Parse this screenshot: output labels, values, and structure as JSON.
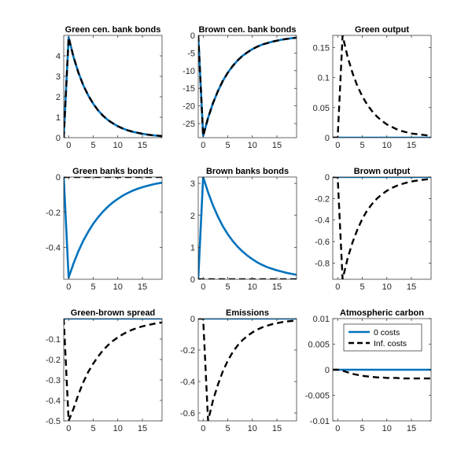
{
  "colors": {
    "zero": "#0072BD",
    "inf": "#000000"
  },
  "chart_data": [
    {
      "type": "line",
      "title": "Green cen. bank bonds",
      "xlim": [
        -1,
        19
      ],
      "ylim": [
        0,
        5
      ],
      "xticks": [
        0,
        5,
        10,
        15
      ],
      "yticks": [
        0,
        1,
        2,
        3,
        4
      ],
      "ytick_labels": [
        "0",
        "1",
        "2",
        "3",
        "4"
      ],
      "series": [
        {
          "name": "0 costs",
          "x": [
            -1,
            0,
            1,
            2,
            3,
            4,
            5,
            6,
            7,
            8,
            9,
            10,
            11,
            12,
            13,
            14,
            15,
            16,
            17,
            18,
            19
          ],
          "y": [
            0,
            4.9,
            3.94,
            3.17,
            2.55,
            2.06,
            1.66,
            1.33,
            1.07,
            0.86,
            0.7,
            0.56,
            0.45,
            0.36,
            0.29,
            0.24,
            0.19,
            0.15,
            0.12,
            0.1,
            0.08
          ]
        },
        {
          "name": "Inf. costs",
          "x": [
            -1,
            0,
            1,
            2,
            3,
            4,
            5,
            6,
            7,
            8,
            9,
            10,
            11,
            12,
            13,
            14,
            15,
            16,
            17,
            18,
            19
          ],
          "y": [
            0,
            4.9,
            3.94,
            3.17,
            2.55,
            2.06,
            1.66,
            1.33,
            1.07,
            0.86,
            0.7,
            0.56,
            0.45,
            0.36,
            0.29,
            0.24,
            0.19,
            0.15,
            0.12,
            0.1,
            0.08
          ]
        }
      ]
    },
    {
      "type": "line",
      "title": "Brown cen. bank bonds",
      "xlim": [
        -1,
        19
      ],
      "ylim": [
        -29,
        0
      ],
      "xticks": [
        0,
        5,
        10,
        15
      ],
      "yticks": [
        0,
        -5,
        -10,
        -15,
        -20,
        -25
      ],
      "ytick_labels": [
        "0",
        "-5",
        "-10",
        "-15",
        "-20",
        "-25"
      ],
      "series": [
        {
          "name": "0 costs",
          "x": [
            -1,
            0,
            1,
            2,
            3,
            4,
            5,
            6,
            7,
            8,
            9,
            10,
            11,
            12,
            13,
            14,
            15,
            16,
            17,
            18,
            19
          ],
          "y": [
            0,
            -28.5,
            -23.4,
            -19.2,
            -15.8,
            -12.9,
            -10.6,
            -8.7,
            -7.1,
            -5.8,
            -4.8,
            -3.9,
            -3.2,
            -2.6,
            -2.2,
            -1.8,
            -1.5,
            -1.2,
            -1.0,
            -0.8,
            -0.65
          ]
        },
        {
          "name": "Inf. costs",
          "x": [
            -1,
            0,
            1,
            2,
            3,
            4,
            5,
            6,
            7,
            8,
            9,
            10,
            11,
            12,
            13,
            14,
            15,
            16,
            17,
            18,
            19
          ],
          "y": [
            0,
            -28.5,
            -23.4,
            -19.2,
            -15.8,
            -12.9,
            -10.6,
            -8.7,
            -7.1,
            -5.8,
            -4.8,
            -3.9,
            -3.2,
            -2.6,
            -2.2,
            -1.8,
            -1.5,
            -1.2,
            -1.0,
            -0.8,
            -0.65
          ]
        }
      ]
    },
    {
      "type": "line",
      "title": "Green output",
      "xlim": [
        -1,
        19
      ],
      "ylim": [
        0,
        0.17
      ],
      "xticks": [
        0,
        5,
        10,
        15
      ],
      "yticks": [
        0,
        0.05,
        0.1,
        0.15
      ],
      "ytick_labels": [
        "0",
        "0.05",
        "0.1",
        "0.15"
      ],
      "series": [
        {
          "name": "0 costs",
          "x": [
            -1,
            19
          ],
          "y": [
            0,
            0
          ]
        },
        {
          "name": "Inf. costs",
          "x": [
            -1,
            0,
            1,
            2,
            3,
            4,
            5,
            6,
            7,
            8,
            9,
            10,
            11,
            12,
            13,
            14,
            15,
            16,
            17,
            18,
            19
          ],
          "y": [
            0,
            0,
            0.17,
            0.135,
            0.108,
            0.086,
            0.069,
            0.055,
            0.044,
            0.035,
            0.028,
            0.022,
            0.018,
            0.014,
            0.011,
            0.009,
            0.007,
            0.006,
            0.005,
            0.004,
            0.003
          ]
        }
      ]
    },
    {
      "type": "line",
      "title": "Green banks bonds",
      "xlim": [
        -1,
        19
      ],
      "ylim": [
        -0.58,
        0
      ],
      "xticks": [
        0,
        5,
        10,
        15
      ],
      "yticks": [
        0,
        -0.2,
        -0.4
      ],
      "ytick_labels": [
        "0",
        "-0.2",
        "-0.4"
      ],
      "series": [
        {
          "name": "0 costs",
          "x": [
            -1,
            0,
            1,
            2,
            3,
            4,
            5,
            6,
            7,
            8,
            9,
            10,
            11,
            12,
            13,
            14,
            15,
            16,
            17,
            18,
            19
          ],
          "y": [
            0,
            -0.57,
            -0.49,
            -0.42,
            -0.36,
            -0.31,
            -0.265,
            -0.228,
            -0.196,
            -0.168,
            -0.144,
            -0.124,
            -0.106,
            -0.091,
            -0.078,
            -0.067,
            -0.058,
            -0.05,
            -0.043,
            -0.037,
            -0.032
          ]
        },
        {
          "name": "Inf. costs",
          "x": [
            -1,
            19
          ],
          "y": [
            0,
            0
          ]
        }
      ]
    },
    {
      "type": "line",
      "title": "Brown banks bonds",
      "xlim": [
        -1,
        19
      ],
      "ylim": [
        0,
        3.2
      ],
      "xticks": [
        0,
        5,
        10,
        15
      ],
      "yticks": [
        0,
        1,
        2,
        3
      ],
      "ytick_labels": [
        "0",
        "1",
        "2",
        "3"
      ],
      "series": [
        {
          "name": "0 costs",
          "x": [
            -1,
            0,
            1,
            2,
            3,
            4,
            5,
            6,
            7,
            8,
            9,
            10,
            11,
            12,
            13,
            14,
            15,
            16,
            17,
            18,
            19
          ],
          "y": [
            0,
            3.2,
            2.72,
            2.31,
            1.96,
            1.66,
            1.41,
            1.2,
            1.02,
            0.87,
            0.74,
            0.63,
            0.53,
            0.45,
            0.38,
            0.33,
            0.28,
            0.24,
            0.2,
            0.17,
            0.14
          ]
        },
        {
          "name": "Inf. costs",
          "x": [
            -1,
            19
          ],
          "y": [
            0,
            0
          ]
        }
      ]
    },
    {
      "type": "line",
      "title": "Brown output",
      "xlim": [
        -1,
        19
      ],
      "ylim": [
        -0.95,
        0
      ],
      "xticks": [
        0,
        5,
        10,
        15
      ],
      "yticks": [
        0,
        -0.2,
        -0.4,
        -0.6,
        -0.8
      ],
      "ytick_labels": [
        "0",
        "-0.2",
        "-0.4",
        "-0.6",
        "-0.8"
      ],
      "series": [
        {
          "name": "0 costs",
          "x": [
            -1,
            19
          ],
          "y": [
            0,
            0
          ]
        },
        {
          "name": "Inf. costs",
          "x": [
            -1,
            0,
            1,
            2,
            3,
            4,
            5,
            6,
            7,
            8,
            9,
            10,
            11,
            12,
            13,
            14,
            15,
            16,
            17,
            18,
            19
          ],
          "y": [
            0,
            0,
            -0.95,
            -0.76,
            -0.61,
            -0.49,
            -0.39,
            -0.31,
            -0.25,
            -0.2,
            -0.16,
            -0.128,
            -0.102,
            -0.082,
            -0.066,
            -0.053,
            -0.042,
            -0.034,
            -0.027,
            -0.022,
            -0.017
          ]
        }
      ]
    },
    {
      "type": "line",
      "title": "Green-brown spread",
      "xlim": [
        -1,
        19
      ],
      "ylim": [
        -0.5,
        0
      ],
      "xticks": [
        0,
        5,
        10,
        15
      ],
      "yticks": [
        -0.1,
        -0.2,
        -0.3,
        -0.4,
        -0.5
      ],
      "ytick_labels": [
        "-0.1",
        "-0.2",
        "-0.3",
        "-0.4",
        "-0.5"
      ],
      "series": [
        {
          "name": "0 costs",
          "x": [
            -1,
            19
          ],
          "y": [
            0,
            0
          ]
        },
        {
          "name": "Inf. costs",
          "x": [
            -1,
            0,
            1,
            2,
            3,
            4,
            5,
            6,
            7,
            8,
            9,
            10,
            11,
            12,
            13,
            14,
            15,
            16,
            17,
            18,
            19
          ],
          "y": [
            0,
            -0.5,
            -0.44,
            -0.37,
            -0.31,
            -0.26,
            -0.22,
            -0.185,
            -0.155,
            -0.13,
            -0.109,
            -0.092,
            -0.077,
            -0.064,
            -0.054,
            -0.045,
            -0.038,
            -0.032,
            -0.027,
            -0.022,
            -0.019
          ]
        }
      ]
    },
    {
      "type": "line",
      "title": "Emissions",
      "xlim": [
        -1,
        19
      ],
      "ylim": [
        -0.65,
        0
      ],
      "xticks": [
        0,
        5,
        10,
        15
      ],
      "yticks": [
        0,
        -0.2,
        -0.4,
        -0.6
      ],
      "ytick_labels": [
        "0",
        "-0.2",
        "-0.4",
        "-0.6"
      ],
      "series": [
        {
          "name": "0 costs",
          "x": [
            -1,
            19
          ],
          "y": [
            0,
            0
          ]
        },
        {
          "name": "Inf. costs",
          "x": [
            -1,
            0,
            1,
            2,
            3,
            4,
            5,
            6,
            7,
            8,
            9,
            10,
            11,
            12,
            13,
            14,
            15,
            16,
            17,
            18,
            19
          ],
          "y": [
            0,
            0,
            -0.65,
            -0.52,
            -0.42,
            -0.335,
            -0.268,
            -0.214,
            -0.171,
            -0.137,
            -0.11,
            -0.088,
            -0.07,
            -0.056,
            -0.045,
            -0.036,
            -0.029,
            -0.023,
            -0.018,
            -0.015,
            -0.012
          ]
        }
      ]
    },
    {
      "type": "line",
      "title": "Atmospheric carbon",
      "xlim": [
        -1,
        19
      ],
      "ylim": [
        -0.01,
        0.01
      ],
      "xticks": [
        0,
        5,
        10,
        15
      ],
      "yticks": [
        0.01,
        0.005,
        0,
        -0.005,
        -0.01
      ],
      "ytick_labels": [
        "0.01",
        "0.005",
        "0",
        "-0.005",
        "-0.01"
      ],
      "legend": {
        "position": "top-right",
        "entries": [
          "0 costs",
          "Inf. costs"
        ]
      },
      "series": [
        {
          "name": "0 costs",
          "x": [
            -1,
            19
          ],
          "y": [
            0,
            0
          ]
        },
        {
          "name": "Inf. costs",
          "x": [
            -1,
            0,
            1,
            2,
            3,
            4,
            5,
            6,
            7,
            8,
            9,
            10,
            11,
            12,
            13,
            14,
            15,
            16,
            17,
            18,
            19
          ],
          "y": [
            0,
            0,
            -0.0002,
            -0.0005,
            -0.0008,
            -0.001,
            -0.0012,
            -0.0013,
            -0.0014,
            -0.0015,
            -0.0015,
            -0.0016,
            -0.0016,
            -0.0016,
            -0.0017,
            -0.0017,
            -0.0017,
            -0.0017,
            -0.0017,
            -0.0017,
            -0.0017
          ]
        }
      ]
    }
  ]
}
